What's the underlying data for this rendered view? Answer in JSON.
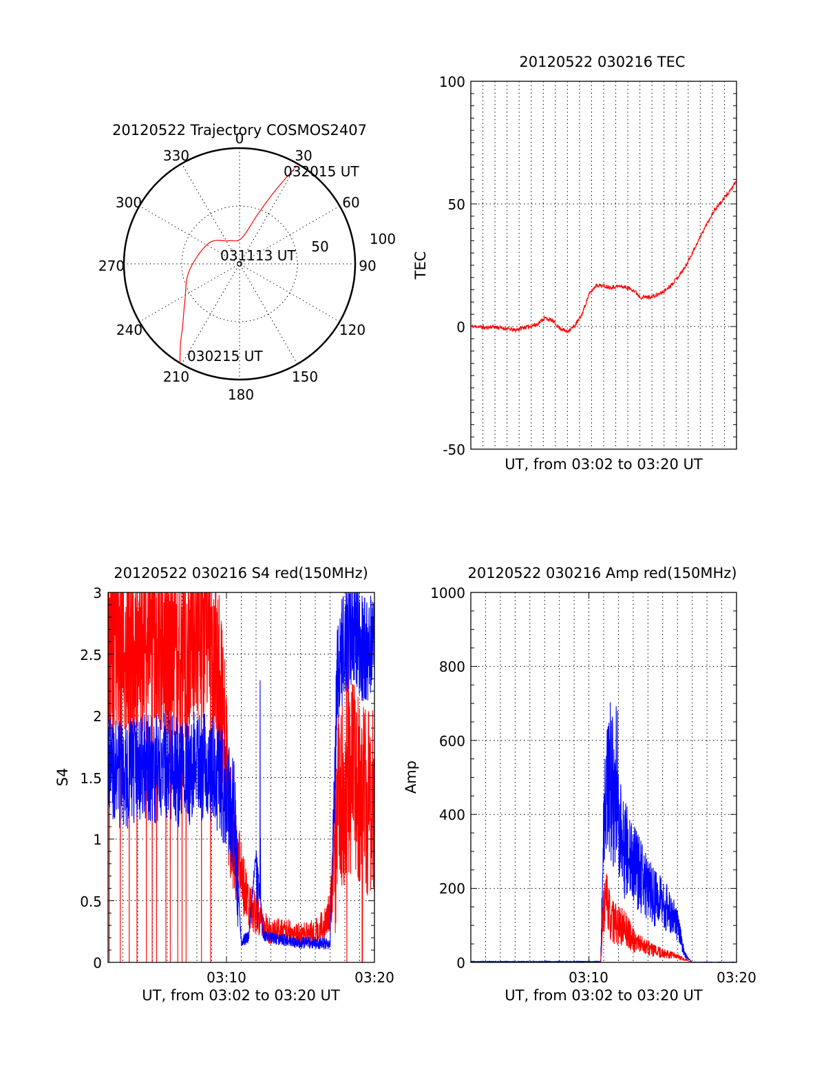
{
  "colors": {
    "red": "#ff0000",
    "blue": "#0000ff",
    "axis": "#000000",
    "background": "#ffffff"
  },
  "chart_data": [
    {
      "id": "trajectory",
      "type": "polar",
      "title": "20120522 Trajectory COSMOS2407",
      "azimuth_labels": [
        "0",
        "30",
        "60",
        "90",
        "120",
        "150",
        "180",
        "210",
        "240",
        "270",
        "300",
        "330"
      ],
      "radial_labels": [
        "50",
        "100"
      ],
      "radial_range": [
        0,
        100
      ],
      "grid": true,
      "series": [
        {
          "color": "#ff0000",
          "points_az_r": [
            [
              211,
              100
            ],
            [
              216,
              87
            ],
            [
              223,
              72
            ],
            [
              236,
              57
            ],
            [
              262,
              44
            ],
            [
              304,
              32
            ],
            [
              335,
              22
            ],
            [
              4,
              22
            ],
            [
              20,
              45
            ],
            [
              25,
              65
            ],
            [
              28,
              82
            ],
            [
              30,
              95
            ]
          ]
        }
      ],
      "annotations": [
        {
          "text": "032015 UT",
          "near": "end of track, near 30"
        },
        {
          "text": "031113 UT",
          "near": "center"
        },
        {
          "text": "030215 UT",
          "near": "start of track, near 210"
        }
      ]
    },
    {
      "id": "tec",
      "type": "line",
      "title": "20120522 030216 TEC",
      "xlabel": "UT, from 03:02 to 03:20 UT",
      "ylabel": "TEC",
      "xlim": [
        0,
        18
      ],
      "ylim": [
        -50,
        100
      ],
      "yticks": [
        "-50",
        "0",
        "50",
        "100"
      ],
      "xticks": [],
      "grid": true,
      "series": [
        {
          "color": "#ff0000",
          "x": [
            0,
            0.5,
            1,
            1.5,
            2,
            2.5,
            3,
            3.5,
            4,
            4.5,
            5,
            5.5,
            6,
            6.5,
            7,
            7.5,
            8,
            8.5,
            9,
            9.5,
            10,
            10.5,
            11,
            11.5,
            12,
            12.5,
            13,
            13.5,
            14,
            14.5,
            15,
            15.5,
            16,
            16.5,
            17,
            17.5,
            18
          ],
          "y": [
            0,
            0,
            -0.5,
            0,
            -0.5,
            -1,
            -1.5,
            -0.5,
            0,
            1,
            3.5,
            2.5,
            -0.5,
            -2,
            0,
            4.5,
            13,
            17,
            16.5,
            16,
            16.5,
            16,
            15,
            12,
            12,
            12.5,
            14,
            16.5,
            20,
            24,
            30,
            36,
            42,
            47.5,
            51,
            55,
            59
          ]
        }
      ]
    },
    {
      "id": "s4",
      "type": "line",
      "title": "20120522 030216 S4 red(150MHz)",
      "xlabel": "UT, from 03:02 to 03:20 UT",
      "ylabel": "S4",
      "xlim": [
        0,
        18
      ],
      "ylim": [
        0,
        3
      ],
      "yticks": [
        "0",
        "0.5",
        "1",
        "1.5",
        "2",
        "2.5",
        "3"
      ],
      "xticks": [
        {
          "x": 8,
          "label": "03:10"
        },
        {
          "x": 18,
          "label": "03:20"
        }
      ],
      "grid": true,
      "series": [
        {
          "color": "#ff0000",
          "x": [
            0,
            1,
            2,
            3,
            4,
            5,
            6,
            7,
            7.5,
            8,
            8.5,
            9,
            9.5,
            10,
            10.5,
            11,
            12,
            13,
            14,
            14.5,
            15,
            15.5,
            16,
            16.5,
            17,
            17.5,
            18
          ],
          "y": [
            2.6,
            2.6,
            2.5,
            2.7,
            2.6,
            2.5,
            2.7,
            2.6,
            2.2,
            1.5,
            0.9,
            0.7,
            0.45,
            0.4,
            0.3,
            0.25,
            0.25,
            0.22,
            0.25,
            0.3,
            0.4,
            1.2,
            1.4,
            1.5,
            1.4,
            1.3,
            1.3
          ]
        },
        {
          "color": "#0000ff",
          "x": [
            0,
            1,
            2,
            3,
            4,
            5,
            6,
            7,
            7.5,
            8,
            8.5,
            9,
            9.5,
            10,
            10.5,
            11,
            12,
            13,
            14,
            14.5,
            15,
            15.5,
            16,
            16.5,
            17,
            17.5,
            18
          ],
          "y": [
            1.6,
            1.5,
            1.6,
            1.55,
            1.6,
            1.5,
            1.6,
            1.55,
            1.5,
            1.35,
            1.2,
            0.18,
            0.2,
            0.9,
            0.22,
            0.2,
            0.18,
            0.16,
            0.16,
            0.15,
            0.15,
            2.4,
            2.6,
            2.7,
            2.6,
            2.5,
            2.7
          ]
        }
      ]
    },
    {
      "id": "amp",
      "type": "line",
      "title": "20120522 030216 Amp red(150MHz)",
      "xlabel": "UT, from 03:02 to 03:20 UT",
      "ylabel": "Amp",
      "xlim": [
        0,
        18
      ],
      "ylim": [
        0,
        1000
      ],
      "yticks": [
        "0",
        "200",
        "400",
        "600",
        "800",
        "1000"
      ],
      "xticks": [
        {
          "x": 8,
          "label": "03:10"
        },
        {
          "x": 18,
          "label": "03:20"
        }
      ],
      "grid": true,
      "series": [
        {
          "color": "#0000ff",
          "x": [
            0,
            8,
            8.8,
            9,
            9.2,
            9.5,
            9.8,
            10,
            10.5,
            11,
            11.5,
            12,
            12.5,
            13,
            13.5,
            14,
            14.5,
            15,
            18
          ],
          "y": [
            2,
            2,
            2,
            350,
            450,
            500,
            400,
            350,
            300,
            260,
            230,
            200,
            170,
            160,
            140,
            100,
            20,
            0,
            0
          ]
        },
        {
          "color": "#ff0000",
          "x": [
            0,
            8.8,
            9,
            9.2,
            9.5,
            10,
            10.5,
            11,
            11.5,
            12,
            12.5,
            13,
            13.5,
            14,
            15,
            18
          ],
          "y": [
            0,
            0,
            150,
            170,
            110,
            100,
            90,
            60,
            50,
            40,
            30,
            25,
            20,
            15,
            0,
            0
          ]
        }
      ]
    }
  ]
}
